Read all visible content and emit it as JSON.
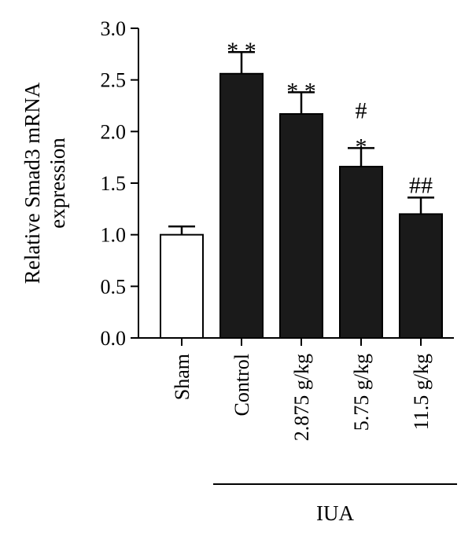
{
  "chart_data": {
    "type": "bar",
    "title": "",
    "ylabel_lines": [
      "Relative Smad3 mRNA",
      "expression"
    ],
    "xlabel": "",
    "categories": [
      "Sham",
      "Control",
      "2.875 g/kg",
      "5.75 g/kg",
      "11.5 g/kg"
    ],
    "values": [
      1.0,
      2.56,
      2.17,
      1.66,
      1.2
    ],
    "error": [
      0.08,
      0.21,
      0.21,
      0.18,
      0.16
    ],
    "bar_fill": [
      "#ffffff",
      "#1a1a1a",
      "#1a1a1a",
      "#1a1a1a",
      "#1a1a1a"
    ],
    "annotations": [
      [],
      [
        "* *"
      ],
      [
        "* *"
      ],
      [
        "#",
        "*"
      ],
      [
        "##"
      ]
    ],
    "ylim": [
      0,
      3.0
    ],
    "yticks": [
      "0.0",
      "0.5",
      "1.0",
      "1.5",
      "2.0",
      "2.5",
      "3.0"
    ],
    "group": {
      "label": "IUA",
      "from_index": 1,
      "to_index": 4
    },
    "grid": false,
    "legend": "none"
  }
}
